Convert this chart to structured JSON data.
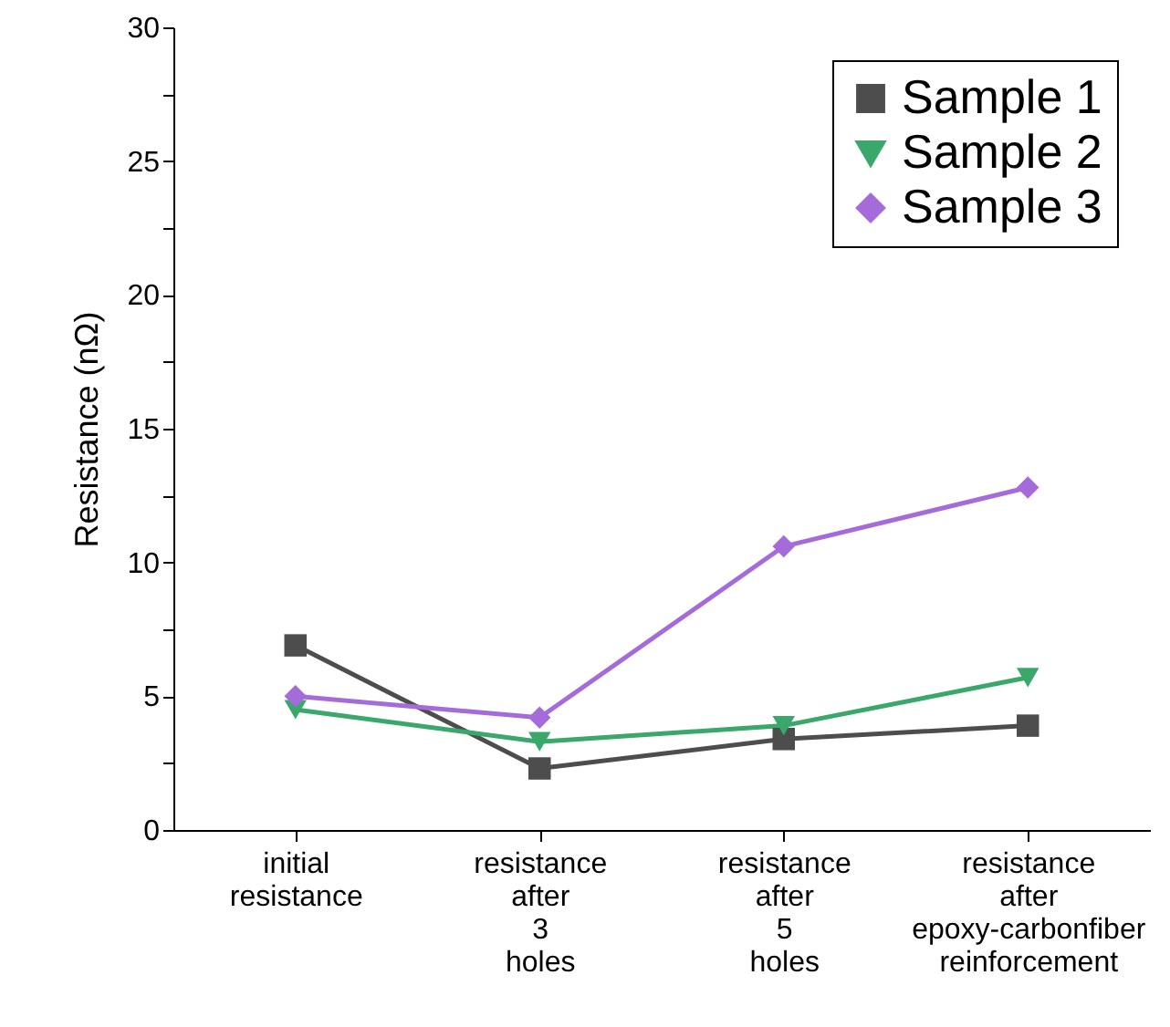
{
  "chart_data": {
    "type": "line",
    "ylabel": "Resistance (nΩ)",
    "categories": [
      "initial resistance",
      "resistance after 3 holes",
      "resistance after 5 holes",
      "resistance after epoxy-carbonfiber reinforcement"
    ],
    "series": [
      {
        "name": "Sample 1",
        "color": "#4d4d4d",
        "marker": "square",
        "values": [
          6.9,
          2.3,
          3.4,
          3.9
        ]
      },
      {
        "name": "Sample 2",
        "color": "#3aa86b",
        "marker": "triangle-down",
        "values": [
          4.5,
          3.3,
          3.9,
          5.7
        ]
      },
      {
        "name": "Sample 3",
        "color": "#a66bdb",
        "marker": "diamond",
        "values": [
          5.0,
          4.2,
          10.6,
          12.8
        ]
      }
    ],
    "ylim": [
      0,
      30
    ],
    "yticks": [
      0,
      {
        "value": 2.5,
        "label": null
      },
      5,
      {
        "value": 7.5,
        "label": null
      },
      10,
      {
        "value": 12.5,
        "label": null
      },
      15,
      {
        "value": 17.5,
        "label": null
      },
      20,
      {
        "value": 22.5,
        "label": null
      },
      25,
      {
        "value": 27.5,
        "label": null
      },
      30
    ],
    "legend": "top right",
    "grid": false,
    "line_style": "solid"
  }
}
